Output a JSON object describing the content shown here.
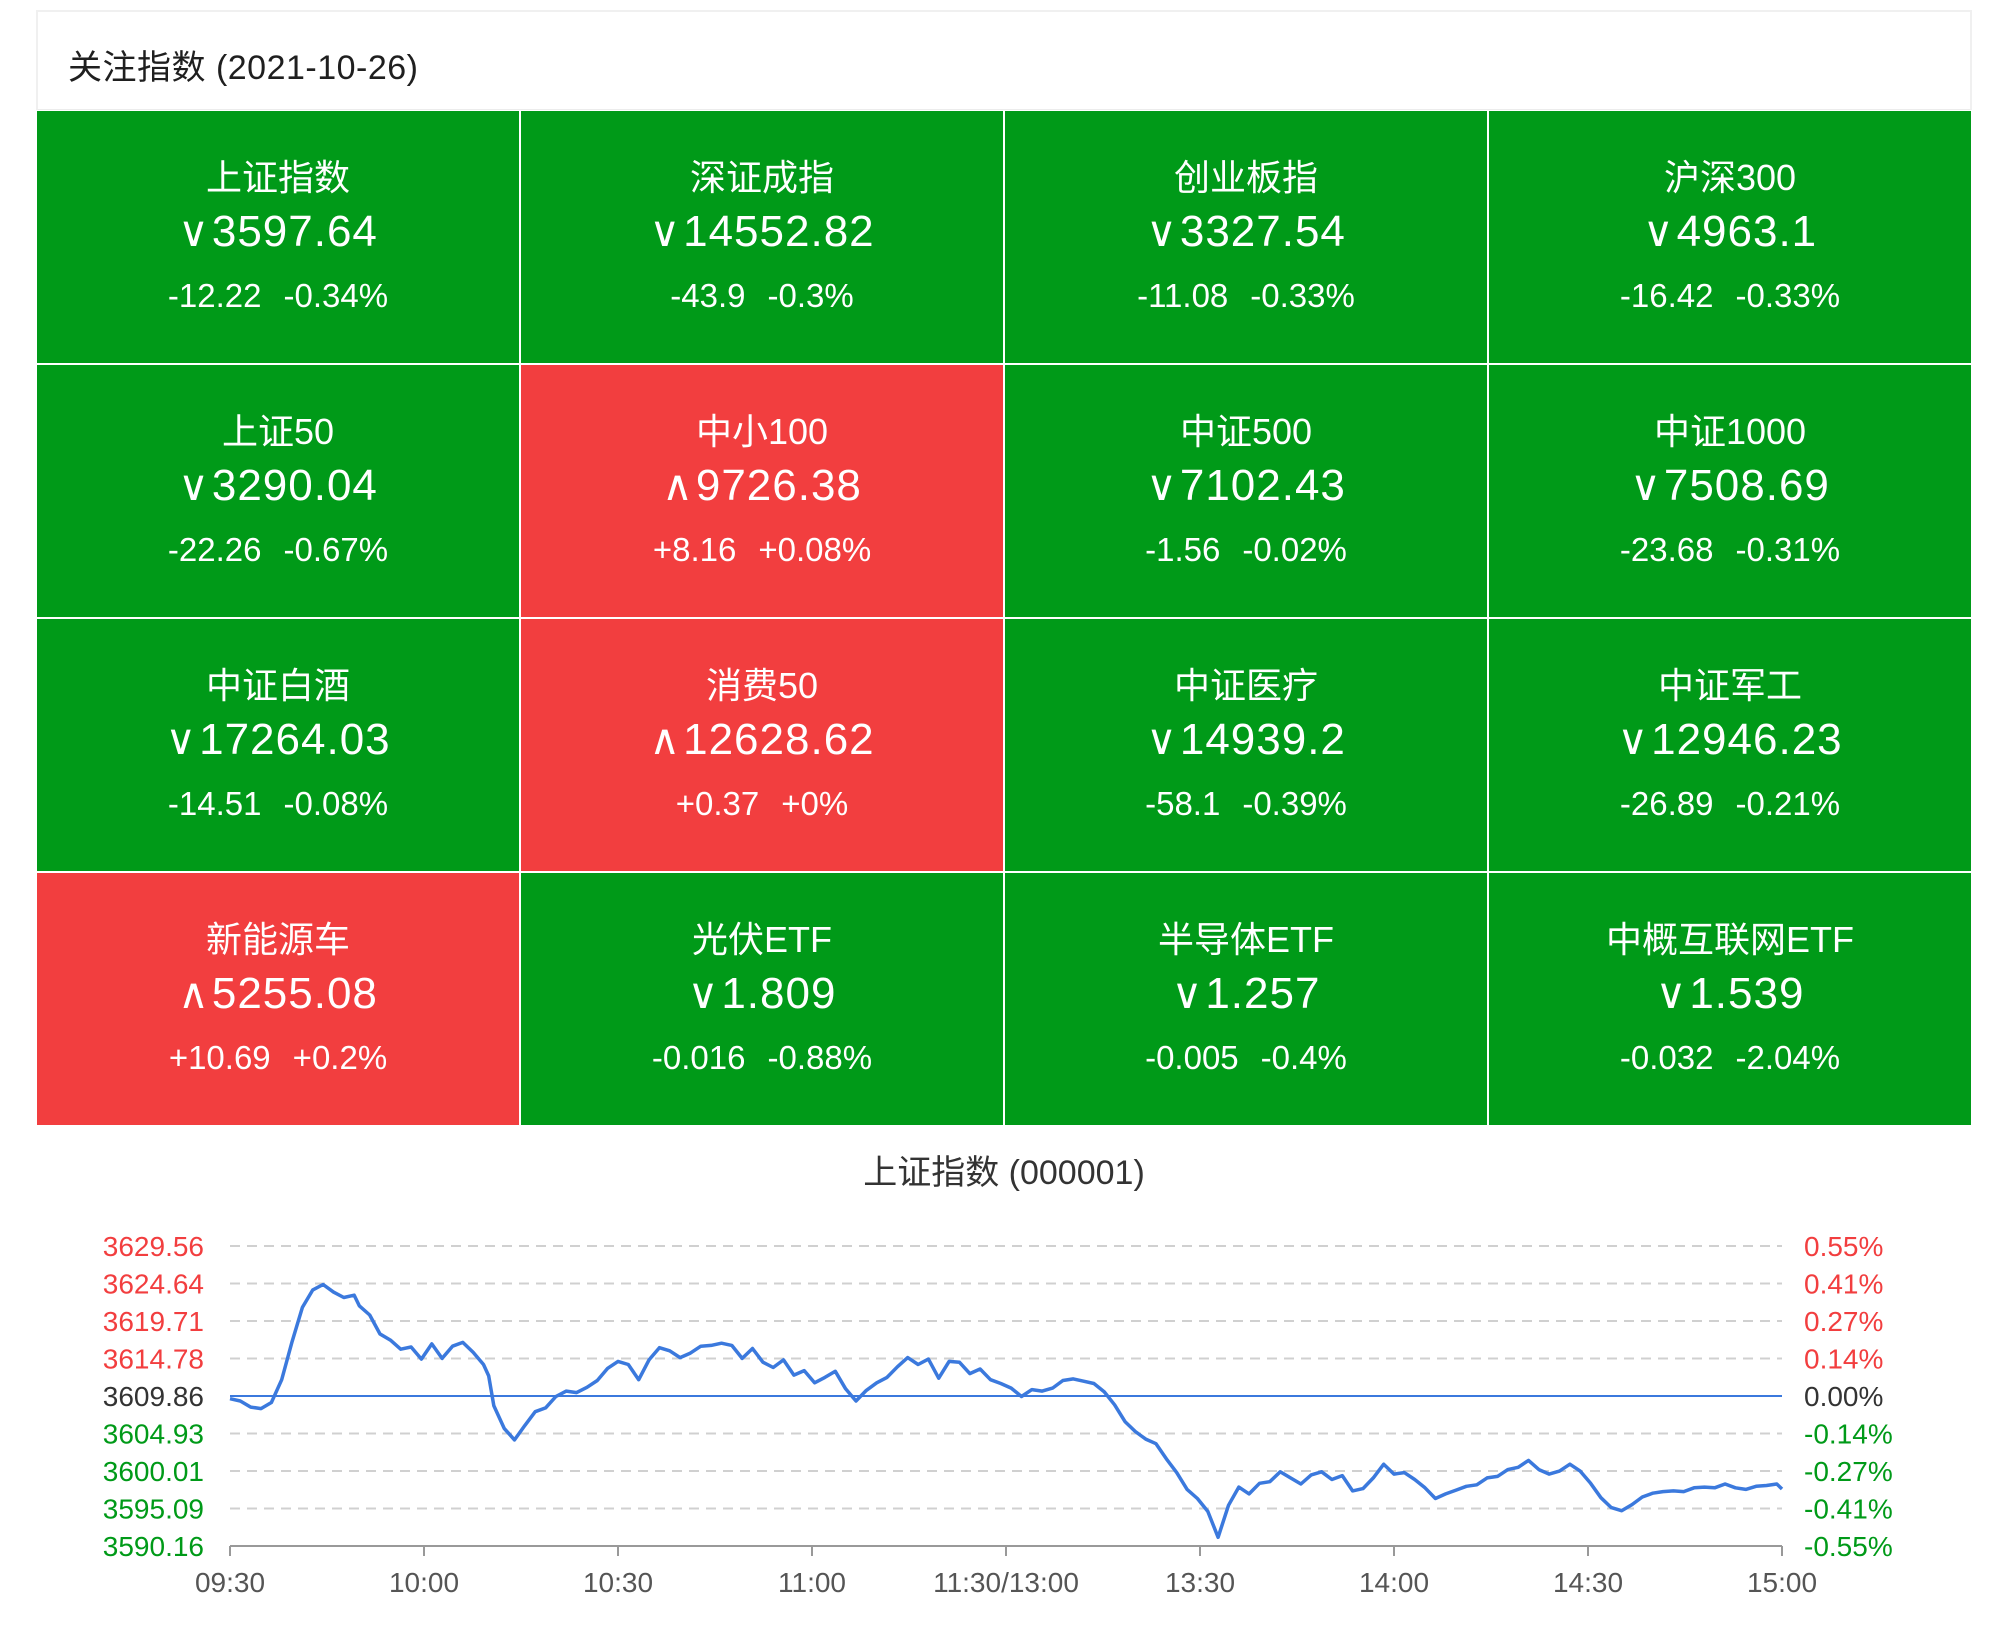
{
  "header": {
    "title": "关注指数 (2021-10-26)"
  },
  "colors": {
    "down": "#009a18",
    "up": "#f23e3f",
    "line": "#3b79dd"
  },
  "tiles": [
    {
      "name": "上证指数",
      "arrow": "∨",
      "price": "3597.64",
      "change": "-12.22",
      "pct": "-0.34%",
      "dir": "down"
    },
    {
      "name": "深证成指",
      "arrow": "∨",
      "price": "14552.82",
      "change": "-43.9",
      "pct": "-0.3%",
      "dir": "down"
    },
    {
      "name": "创业板指",
      "arrow": "∨",
      "price": "3327.54",
      "change": "-11.08",
      "pct": "-0.33%",
      "dir": "down"
    },
    {
      "name": "沪深300",
      "arrow": "∨",
      "price": "4963.1",
      "change": "-16.42",
      "pct": "-0.33%",
      "dir": "down"
    },
    {
      "name": "上证50",
      "arrow": "∨",
      "price": "3290.04",
      "change": "-22.26",
      "pct": "-0.67%",
      "dir": "down"
    },
    {
      "name": "中小100",
      "arrow": "∧",
      "price": "9726.38",
      "change": "+8.16",
      "pct": "+0.08%",
      "dir": "up"
    },
    {
      "name": "中证500",
      "arrow": "∨",
      "price": "7102.43",
      "change": "-1.56",
      "pct": "-0.02%",
      "dir": "down"
    },
    {
      "name": "中证1000",
      "arrow": "∨",
      "price": "7508.69",
      "change": "-23.68",
      "pct": "-0.31%",
      "dir": "down"
    },
    {
      "name": "中证白酒",
      "arrow": "∨",
      "price": "17264.03",
      "change": "-14.51",
      "pct": "-0.08%",
      "dir": "down"
    },
    {
      "name": "消费50",
      "arrow": "∧",
      "price": "12628.62",
      "change": "+0.37",
      "pct": "+0%",
      "dir": "up"
    },
    {
      "name": "中证医疗",
      "arrow": "∨",
      "price": "14939.2",
      "change": "-58.1",
      "pct": "-0.39%",
      "dir": "down"
    },
    {
      "name": "中证军工",
      "arrow": "∨",
      "price": "12946.23",
      "change": "-26.89",
      "pct": "-0.21%",
      "dir": "down"
    },
    {
      "name": "新能源车",
      "arrow": "∧",
      "price": "5255.08",
      "change": "+10.69",
      "pct": "+0.2%",
      "dir": "up"
    },
    {
      "name": "光伏ETF",
      "arrow": "∨",
      "price": "1.809",
      "change": "-0.016",
      "pct": "-0.88%",
      "dir": "down"
    },
    {
      "name": "半导体ETF",
      "arrow": "∨",
      "price": "1.257",
      "change": "-0.005",
      "pct": "-0.4%",
      "dir": "down"
    },
    {
      "name": "中概互联网ETF",
      "arrow": "∨",
      "price": "1.539",
      "change": "-0.032",
      "pct": "-2.04%",
      "dir": "down"
    }
  ],
  "chart_data": {
    "type": "line",
    "title": "上证指数 (000001)",
    "base": 3609.86,
    "ylim": [
      3590.16,
      3629.56
    ],
    "yticks_left": [
      "3629.56",
      "3624.64",
      "3619.71",
      "3614.78",
      "3609.86",
      "3604.93",
      "3600.01",
      "3595.09",
      "3590.16"
    ],
    "yticks_right": [
      "0.55%",
      "0.41%",
      "0.27%",
      "0.14%",
      "0.00%",
      "-0.14%",
      "-0.27%",
      "-0.41%",
      "-0.55%"
    ],
    "xticks": [
      "09:30",
      "10:00",
      "10:30",
      "11:00",
      "11:30/13:00",
      "13:30",
      "14:00",
      "14:30",
      "15:00"
    ],
    "total_minutes": 240,
    "series": [
      {
        "name": "上证指数",
        "points": [
          [
            0,
            3609.5
          ],
          [
            2,
            3609.2
          ],
          [
            4,
            3608.4
          ],
          [
            6,
            3608.2
          ],
          [
            8,
            3609.0
          ],
          [
            10,
            3612.0
          ],
          [
            12,
            3617.0
          ],
          [
            14,
            3621.5
          ],
          [
            16,
            3623.8
          ],
          [
            18,
            3624.5
          ],
          [
            20,
            3623.5
          ],
          [
            22,
            3622.8
          ],
          [
            24,
            3623.1
          ],
          [
            25,
            3621.7
          ],
          [
            27,
            3620.5
          ],
          [
            29,
            3618.0
          ],
          [
            31,
            3617.2
          ],
          [
            33,
            3616.0
          ],
          [
            35,
            3616.3
          ],
          [
            37,
            3614.7
          ],
          [
            39,
            3616.7
          ],
          [
            41,
            3614.8
          ],
          [
            43,
            3616.4
          ],
          [
            45,
            3616.9
          ],
          [
            47,
            3615.6
          ],
          [
            49,
            3614.0
          ],
          [
            50,
            3612.5
          ],
          [
            51,
            3608.6
          ],
          [
            53,
            3605.6
          ],
          [
            55,
            3604.1
          ],
          [
            57,
            3606.0
          ],
          [
            59,
            3607.8
          ],
          [
            61,
            3608.3
          ],
          [
            63,
            3609.8
          ],
          [
            65,
            3610.5
          ],
          [
            67,
            3610.3
          ],
          [
            69,
            3611.0
          ],
          [
            71,
            3611.9
          ],
          [
            73,
            3613.5
          ],
          [
            75,
            3614.4
          ],
          [
            77,
            3614.0
          ],
          [
            79,
            3612.0
          ],
          [
            81,
            3614.6
          ],
          [
            83,
            3616.2
          ],
          [
            85,
            3615.8
          ],
          [
            87,
            3614.9
          ],
          [
            89,
            3615.5
          ],
          [
            91,
            3616.4
          ],
          [
            93,
            3616.5
          ],
          [
            95,
            3616.8
          ],
          [
            97,
            3616.5
          ],
          [
            99,
            3614.8
          ],
          [
            101,
            3616.1
          ],
          [
            103,
            3614.3
          ],
          [
            105,
            3613.6
          ],
          [
            107,
            3614.6
          ],
          [
            109,
            3612.6
          ],
          [
            111,
            3613.2
          ],
          [
            113,
            3611.6
          ],
          [
            115,
            3612.3
          ],
          [
            117,
            3613.1
          ],
          [
            119,
            3610.8
          ],
          [
            121,
            3609.2
          ],
          [
            123,
            3610.6
          ],
          [
            125,
            3611.6
          ],
          [
            127,
            3612.3
          ],
          [
            129,
            3613.7
          ],
          [
            131,
            3614.9
          ],
          [
            133,
            3614.0
          ],
          [
            135,
            3614.7
          ],
          [
            137,
            3612.2
          ],
          [
            139,
            3614.4
          ],
          [
            141,
            3614.3
          ],
          [
            143,
            3612.8
          ],
          [
            145,
            3613.4
          ],
          [
            147,
            3612.0
          ],
          [
            149,
            3611.5
          ],
          [
            151,
            3610.9
          ],
          [
            153,
            3609.8
          ],
          [
            155,
            3610.7
          ],
          [
            157,
            3610.5
          ],
          [
            159,
            3610.9
          ],
          [
            161,
            3611.9
          ],
          [
            163,
            3612.1
          ],
          [
            165,
            3611.8
          ],
          [
            167,
            3611.5
          ],
          [
            169,
            3610.4
          ],
          [
            171,
            3608.7
          ],
          [
            173,
            3606.5
          ],
          [
            175,
            3605.2
          ],
          [
            177,
            3604.2
          ],
          [
            179,
            3603.6
          ],
          [
            181,
            3601.6
          ],
          [
            183,
            3599.8
          ],
          [
            185,
            3597.6
          ],
          [
            187,
            3596.4
          ],
          [
            189,
            3594.7
          ],
          [
            191,
            3591.3
          ],
          [
            193,
            3595.5
          ],
          [
            195,
            3597.9
          ],
          [
            197,
            3597.0
          ],
          [
            199,
            3598.4
          ],
          [
            201,
            3598.6
          ],
          [
            203,
            3599.9
          ],
          [
            205,
            3599.1
          ],
          [
            207,
            3598.3
          ],
          [
            209,
            3599.5
          ],
          [
            211,
            3599.9
          ],
          [
            213,
            3598.9
          ],
          [
            215,
            3599.4
          ],
          [
            217,
            3597.4
          ],
          [
            219,
            3597.7
          ],
          [
            221,
            3599.1
          ],
          [
            223,
            3600.9
          ],
          [
            225,
            3599.6
          ],
          [
            227,
            3599.8
          ],
          [
            229,
            3598.9
          ],
          [
            231,
            3597.8
          ],
          [
            233,
            3596.4
          ],
          [
            235,
            3597.0
          ],
          [
            237,
            3597.5
          ],
          [
            239,
            3598.0
          ],
          [
            241,
            3598.2
          ],
          [
            243,
            3599.1
          ],
          [
            245,
            3599.3
          ],
          [
            247,
            3600.2
          ],
          [
            249,
            3600.5
          ],
          [
            251,
            3601.4
          ],
          [
            253,
            3600.2
          ],
          [
            255,
            3599.6
          ],
          [
            257,
            3600.0
          ],
          [
            259,
            3600.9
          ],
          [
            261,
            3600.0
          ],
          [
            263,
            3598.4
          ],
          [
            265,
            3596.5
          ],
          [
            267,
            3595.2
          ],
          [
            269,
            3594.8
          ],
          [
            271,
            3595.6
          ],
          [
            273,
            3596.6
          ],
          [
            275,
            3597.1
          ],
          [
            277,
            3597.3
          ],
          [
            279,
            3597.4
          ],
          [
            281,
            3597.3
          ],
          [
            283,
            3597.8
          ],
          [
            285,
            3597.9
          ],
          [
            287,
            3597.8
          ],
          [
            289,
            3598.3
          ],
          [
            291,
            3597.8
          ],
          [
            293,
            3597.6
          ],
          [
            295,
            3598.0
          ],
          [
            297,
            3598.1
          ],
          [
            299,
            3598.3
          ],
          [
            300,
            3597.64
          ]
        ]
      }
    ]
  }
}
